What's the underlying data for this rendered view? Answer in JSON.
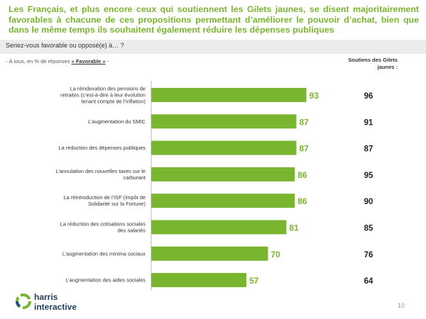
{
  "header": {
    "headline": "Les Français, et plus encore ceux qui soutiennent les Gilets jaunes, se disent majoritairement favorables à chacune de ces propositions permettant d’améliorer le pouvoir d’achat, bien que dans le même temps ils souhaitent également réduire les dépenses publiques",
    "question": "Seriez-vous favorable ou opposé(e) à… ?",
    "base_prefix": "- À tous, en % de réponses ",
    "base_highlight": "« Favorable »",
    "base_suffix": " -",
    "column_header": "Soutiens des Gilets jaunes :"
  },
  "chart_data": {
    "type": "bar",
    "orientation": "horizontal",
    "categories": [
      "La réindexation des pensions de retraites (c’est-à-dire à leur évolution tenant compte de l’inflation)",
      "L’augmentation du SMIC",
      "La réduction des dépenses publiques",
      "L’annulation des nouvelles taxes sur le carburant",
      "La réintroduction de l’ISF (Impôt de Solidarité sur la Fortune)",
      "La réduction des cotisations sociales des salariés",
      "L’augmentation des minima sociaux",
      "L’augmentation des aides sociales"
    ],
    "series": [
      {
        "values": [
          93,
          87,
          87,
          86,
          86,
          81,
          70,
          57
        ]
      }
    ],
    "side_values": [
      96,
      91,
      87,
      95,
      90,
      85,
      76,
      64
    ],
    "xlim": [
      0,
      100
    ],
    "color": "#7ab530",
    "grid": false
  },
  "footer": {
    "logo_line1": "harris",
    "logo_line2": "interactive",
    "page_number": "10"
  }
}
